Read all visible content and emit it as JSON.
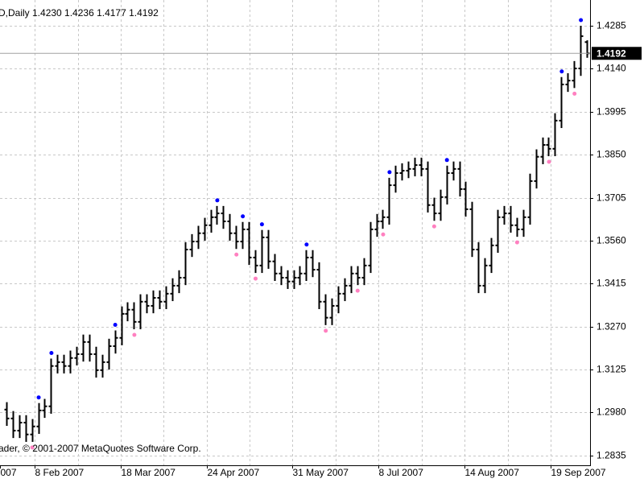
{
  "chart_data": {
    "type": "ohlc",
    "header": "D,Daily  1.4230 1.4236 1.4177 1.4192",
    "copyright": "ader, © 2001-2007 MetaQuotes Software Corp.",
    "color": "#000000",
    "open": [
      1.299,
      1.296,
      1.2919,
      1.2946,
      1.2906,
      1.2933,
      1.2987,
      1.3001,
      1.3137,
      1.315,
      1.3137,
      1.3164,
      1.3177,
      1.3218,
      1.3177,
      1.3123,
      1.315,
      1.3204,
      1.3232,
      1.3313,
      1.3327,
      1.3286,
      1.3354,
      1.334,
      1.3367,
      1.3354,
      1.3381,
      1.3408,
      1.3435,
      1.353,
      1.3557,
      1.3585,
      1.3612,
      1.3639,
      1.3652,
      1.3625,
      1.3585,
      1.3557,
      1.3598,
      1.3503,
      1.3476,
      1.3571,
      1.349,
      1.3449,
      1.3435,
      1.3422,
      1.3435,
      1.3449,
      1.3503,
      1.3462,
      1.3354,
      1.33,
      1.334,
      1.3381,
      1.3408,
      1.3449,
      1.3435,
      1.3476,
      1.3598,
      1.3625,
      1.3639,
      1.3747,
      1.3788,
      1.3796,
      1.3802,
      1.3815,
      1.3802,
      1.368,
      1.3652,
      1.3707,
      1.3788,
      1.3802,
      1.3734,
      1.3666,
      1.353,
      1.3408,
      1.3476,
      1.3544,
      1.3639,
      1.3652,
      1.3612,
      1.3598,
      1.3639,
      1.3761,
      1.3843,
      1.3883,
      1.387,
      1.3965,
      1.4087,
      1.41,
      1.4141,
      1.423
    ],
    "high": [
      1.3015,
      1.2985,
      1.2971,
      1.2971,
      1.2958,
      1.3012,
      1.3026,
      1.3162,
      1.3175,
      1.3175,
      1.3189,
      1.3202,
      1.3243,
      1.3243,
      1.3202,
      1.3175,
      1.3229,
      1.3257,
      1.3338,
      1.3352,
      1.3352,
      1.3379,
      1.3379,
      1.3392,
      1.3392,
      1.3406,
      1.3433,
      1.346,
      1.3555,
      1.3582,
      1.361,
      1.3637,
      1.3664,
      1.3677,
      1.3677,
      1.365,
      1.361,
      1.3623,
      1.3623,
      1.3528,
      1.3596,
      1.3596,
      1.3515,
      1.3474,
      1.346,
      1.346,
      1.3474,
      1.3528,
      1.3528,
      1.3487,
      1.3379,
      1.3365,
      1.3406,
      1.3433,
      1.3474,
      1.3474,
      1.3501,
      1.3623,
      1.365,
      1.3664,
      1.3772,
      1.3813,
      1.3821,
      1.3827,
      1.384,
      1.384,
      1.3827,
      1.3705,
      1.3732,
      1.3813,
      1.3827,
      1.3827,
      1.3759,
      1.3691,
      1.3555,
      1.3501,
      1.3569,
      1.3664,
      1.3677,
      1.3677,
      1.3637,
      1.3664,
      1.3786,
      1.3868,
      1.3908,
      1.3908,
      1.399,
      1.4112,
      1.4125,
      1.4166,
      1.4285,
      1.4236
    ],
    "low": [
      1.2935,
      1.2894,
      1.2894,
      1.2881,
      1.2881,
      1.2908,
      1.2962,
      1.2976,
      1.3112,
      1.3112,
      1.3112,
      1.3139,
      1.3152,
      1.3152,
      1.3098,
      1.3098,
      1.3125,
      1.3179,
      1.3207,
      1.3288,
      1.3261,
      1.3261,
      1.3315,
      1.3315,
      1.3329,
      1.3329,
      1.3356,
      1.3383,
      1.341,
      1.3505,
      1.3532,
      1.356,
      1.3587,
      1.3614,
      1.36,
      1.356,
      1.3532,
      1.3532,
      1.3478,
      1.3451,
      1.3451,
      1.3465,
      1.3424,
      1.341,
      1.3397,
      1.3397,
      1.341,
      1.3424,
      1.3437,
      1.3329,
      1.3275,
      1.3275,
      1.3315,
      1.3356,
      1.3383,
      1.341,
      1.341,
      1.3451,
      1.3573,
      1.36,
      1.3614,
      1.3722,
      1.3763,
      1.3771,
      1.3777,
      1.3777,
      1.3655,
      1.3627,
      1.3627,
      1.3682,
      1.3763,
      1.3709,
      1.3641,
      1.3505,
      1.3383,
      1.3383,
      1.3451,
      1.3519,
      1.3614,
      1.3587,
      1.3573,
      1.3573,
      1.3614,
      1.3736,
      1.3818,
      1.3845,
      1.3845,
      1.394,
      1.4062,
      1.4075,
      1.4116,
      1.4177
    ],
    "close": [
      1.296,
      1.2919,
      1.2946,
      1.2906,
      1.2933,
      1.2987,
      1.3001,
      1.3137,
      1.315,
      1.3137,
      1.3164,
      1.3177,
      1.3218,
      1.3177,
      1.3123,
      1.315,
      1.3204,
      1.3232,
      1.3313,
      1.3327,
      1.3286,
      1.3354,
      1.334,
      1.3367,
      1.3354,
      1.3381,
      1.3408,
      1.3435,
      1.353,
      1.3557,
      1.3585,
      1.3612,
      1.3639,
      1.3652,
      1.3625,
      1.3585,
      1.3557,
      1.3598,
      1.3503,
      1.3476,
      1.3571,
      1.349,
      1.3449,
      1.3435,
      1.3422,
      1.3435,
      1.3449,
      1.3503,
      1.3462,
      1.3354,
      1.33,
      1.334,
      1.3381,
      1.3408,
      1.3449,
      1.3435,
      1.3476,
      1.3598,
      1.3625,
      1.3639,
      1.3747,
      1.3788,
      1.3796,
      1.3802,
      1.3815,
      1.3802,
      1.368,
      1.3652,
      1.3707,
      1.3788,
      1.3802,
      1.3734,
      1.3666,
      1.353,
      1.3408,
      1.3476,
      1.3544,
      1.3639,
      1.3652,
      1.3612,
      1.3598,
      1.3639,
      1.3761,
      1.3843,
      1.3883,
      1.387,
      1.3965,
      1.4087,
      1.41,
      1.4141,
      1.425,
      1.4192
    ],
    "fractals_up": {
      "color": "#0000ff",
      "x": [
        5,
        7,
        17,
        33,
        37,
        40,
        47,
        60,
        69,
        87,
        90
      ],
      "values": [
        1.3012,
        1.3162,
        1.3257,
        1.3677,
        1.3623,
        1.3596,
        1.3528,
        1.3772,
        1.3813,
        1.4112,
        1.4285
      ]
    },
    "fractals_down": {
      "color": "#ff80c0",
      "x": [
        4,
        20,
        36,
        39,
        50,
        55,
        59,
        67,
        80,
        85,
        89
      ],
      "values": [
        1.2881,
        1.3261,
        1.3532,
        1.3451,
        1.3275,
        1.341,
        1.36,
        1.3627,
        1.3573,
        1.3845,
        1.4075
      ]
    },
    "current_price": 1.4192,
    "current_price_label": "1.4192",
    "xlim": [
      -1,
      91.5
    ],
    "xticks": [
      {
        "value": -1,
        "label": "007"
      },
      {
        "value": 4.43,
        "label": "8 Feb 2007"
      },
      {
        "value": 17.93,
        "label": "18 Mar 2007"
      },
      {
        "value": 31.43,
        "label": "24 Apr 2007"
      },
      {
        "value": 44.81,
        "label": "31 May 2007"
      },
      {
        "value": 58.31,
        "label": "8 Jul 2007"
      },
      {
        "value": 71.82,
        "label": "14 Aug 2007"
      },
      {
        "value": 85.32,
        "label": "19 Sep 2007"
      }
    ],
    "ylim": [
      1.2802,
      1.4372
    ],
    "yticks": [
      1.4285,
      {
        "value": 1.414,
        "label": "1.4140"
      },
      1.3995,
      {
        "value": 1.385,
        "label": "1.3850"
      },
      1.3705,
      {
        "value": 1.356,
        "label": "1.3560"
      },
      1.3415,
      {
        "value": 1.327,
        "label": "1.3270"
      },
      1.3125,
      {
        "value": 1.298,
        "label": "1.2980"
      },
      1.2835
    ],
    "grid": true
  }
}
